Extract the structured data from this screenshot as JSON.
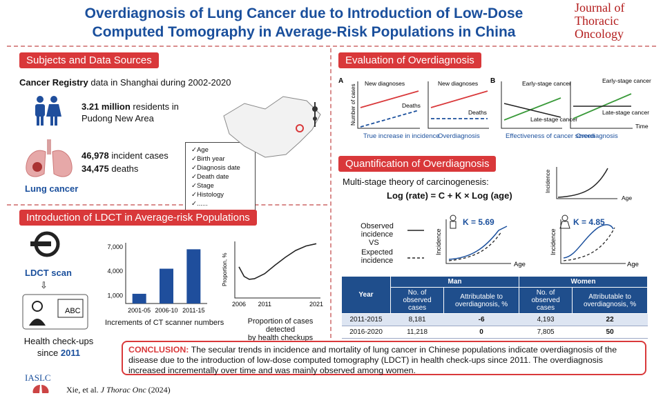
{
  "header": {
    "title_line1": "Overdiagnosis of Lung Cancer due to Introduction of Low-Dose",
    "title_line2": "Computed Tomography in Average-Risk Populations in China",
    "journal_line1": "Journal of",
    "journal_line2": "Thoracic",
    "journal_line3": "Oncology"
  },
  "subjects": {
    "heading": "Subjects and Data Sources",
    "registry_bold": "Cancer Registry",
    "registry_rest": " data in Shanghai during 2002-2020",
    "residents_bold": "3.21 million",
    "residents_rest": " residents in",
    "residents_line2": "Pudong New Area",
    "cases_bold": "46,978",
    "cases_rest": " incident cases",
    "deaths_bold": "34,475",
    "deaths_rest": " deaths",
    "lung_label": "Lung cancer",
    "checklist": [
      "Age",
      "Birth year",
      "Diagnosis date",
      "Death date",
      "Stage",
      "Histology",
      "......"
    ]
  },
  "ldct": {
    "heading": "Introduction of LDCT in Average-risk Populations",
    "scan_label": "LDCT scan",
    "checkup_line1": "Health check-ups",
    "checkup_line2": "since ",
    "checkup_year": "2011",
    "bar_caption": "Increments of CT scanner numbers",
    "line_caption_1": "Proportion of cases detected",
    "line_caption_2": "by health checkups",
    "line_ylabel": "Proportion, %"
  },
  "evaluation": {
    "heading": "Evaluation of Overdiagnosis",
    "panel_a": "A",
    "panel_b": "B",
    "y_label": "Number of cases",
    "new_diag": "New diagnoses",
    "deaths": "Deaths",
    "early": "Early-stage cancer",
    "late": "Late-stage cancer",
    "time": "Time",
    "cap1": "True increase in incidence",
    "cap2": "Overdiagnosis",
    "cap3": "Effectiveness of cancer screen",
    "cap4": "Overdiagnosis"
  },
  "quant": {
    "heading": "Quantification of Overdiagnosis",
    "theory": "Multi-stage theory of carcinogenesis:",
    "formula": "Log (rate) = C + K × Log (age)",
    "incidence": "Incidence",
    "age": "Age",
    "observed": "Observed incidence",
    "vs": "VS",
    "expected": "Expected incidence",
    "k_men": "K = 5.69",
    "k_women": "K = 4.85"
  },
  "table": {
    "year_header": "Year",
    "men": "Man",
    "women": "Women",
    "sub_obs": "No. of observed cases",
    "sub_attr": "Attributable to overdiagnosis, %",
    "rows": [
      {
        "year": "2011-2015",
        "m_obs": "8,181",
        "m_attr": "-6",
        "w_obs": "4,193",
        "w_attr": "22"
      },
      {
        "year": "2016-2020",
        "m_obs": "11,218",
        "m_attr": "0",
        "w_obs": "7,805",
        "w_attr": "50"
      }
    ]
  },
  "conclusion": {
    "label": "CONCLUSION:",
    "text": " The secular trends in incidence and mortality of lung cancer in Chinese populations indicate overdiagnosis of the disease due to the introduction of low-dose computed tomography (LDCT) in health check-ups since 2011. The overdiagnosis increased incrementally over time and was mainly observed among women."
  },
  "footer": {
    "iaslc": "IASLC",
    "citation_pre": "Xie, et al. ",
    "citation_journal": "J Thorac Onc",
    "citation_year": " (2024)"
  },
  "colors": {
    "accent": "#d9383a",
    "blue": "#1a4f9c",
    "green": "#3a9a3a"
  },
  "chart_data": [
    {
      "type": "bar",
      "categories": [
        "2001-05",
        "2006-10",
        "2011-15"
      ],
      "values": [
        1200,
        4300,
        6700
      ],
      "yticks": [
        "1,000",
        "4,000",
        "7,000"
      ],
      "ylim": [
        0,
        7500
      ],
      "xlabel": "Increments of CT scanner numbers",
      "color": "#1f4e9c"
    },
    {
      "type": "line",
      "x": [
        2006,
        2007,
        2008,
        2009,
        2011,
        2013,
        2015,
        2017,
        2019,
        2021
      ],
      "values": [
        55,
        38,
        33,
        34,
        43,
        58,
        72,
        84,
        92,
        96
      ],
      "xticks": [
        "2006",
        "2011",
        "2021"
      ],
      "ylabel": "Proportion, %",
      "ylim": [
        0,
        100
      ],
      "xlabel": "Proportion of cases detected by health checkups"
    }
  ]
}
